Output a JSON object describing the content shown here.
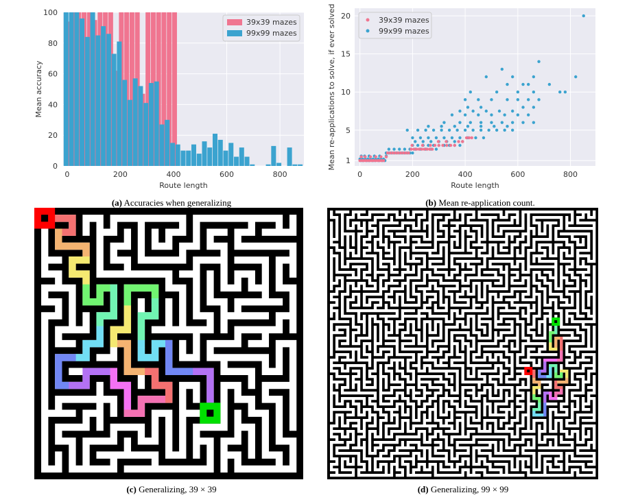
{
  "captions": {
    "a_tag": "(a)",
    "a_text": "Accuracies when generalizing",
    "b_tag": "(b)",
    "b_text": "Mean re-application count.",
    "c_tag": "(c)",
    "c_text": "Generalizing, 39 × 39",
    "d_tag": "(d)",
    "d_text": "Generalizing, 99 × 99"
  },
  "colors": {
    "series_39": "#f07590",
    "series_99": "#3ba3cf",
    "plot_bg": "#eaeaf2",
    "maze_wall": "#000000",
    "maze_path": "#ffffff",
    "start_marker": "#ff0000",
    "goal_marker": "#00e000"
  },
  "chart_data": [
    {
      "type": "bar",
      "xlabel": "Route length",
      "ylabel": "Mean accuracy",
      "xlim": [
        -15,
        890
      ],
      "ylim": [
        0,
        100
      ],
      "xticks": [
        0,
        200,
        400,
        600,
        800
      ],
      "yticks": [
        0,
        20,
        40,
        60,
        80,
        100
      ],
      "legend_position": "top-right",
      "grid": true,
      "series": [
        {
          "name": "39x39 mazes",
          "x": [
            0,
            20,
            40,
            60,
            80,
            100,
            120,
            140,
            160,
            180,
            200,
            220,
            240,
            260,
            280,
            300,
            320,
            340,
            360,
            380,
            400
          ],
          "values": [
            94,
            100,
            100,
            100,
            100,
            95,
            100,
            100,
            100,
            62,
            100,
            100,
            100,
            100,
            47,
            100,
            100,
            100,
            100,
            100,
            100
          ]
        },
        {
          "name": "99x99 mazes",
          "x": [
            0,
            20,
            40,
            60,
            80,
            100,
            120,
            140,
            160,
            180,
            200,
            220,
            240,
            260,
            280,
            300,
            320,
            340,
            360,
            380,
            400,
            420,
            440,
            460,
            480,
            500,
            520,
            540,
            560,
            580,
            600,
            620,
            640,
            660,
            680,
            700,
            720,
            740,
            760,
            780,
            800,
            820,
            840,
            860,
            880
          ],
          "values": [
            100,
            100,
            100,
            96,
            84,
            100,
            85,
            91,
            86,
            73,
            81,
            56,
            43,
            57,
            52,
            41,
            54,
            55,
            27,
            30,
            15,
            14,
            10,
            10,
            14,
            8,
            16,
            12,
            21,
            17,
            10,
            15,
            6,
            12,
            6,
            1,
            0,
            0,
            1,
            13,
            2,
            0,
            12,
            1,
            1
          ]
        }
      ]
    },
    {
      "type": "scatter",
      "xlabel": "Route length",
      "ylabel": "Mean re-applications to solve, if ever solved",
      "xlim": [
        -20,
        895
      ],
      "ylim": [
        0.3,
        21
      ],
      "xticks": [
        0,
        200,
        400,
        600,
        800
      ],
      "yticks": [
        1,
        5,
        10,
        15,
        20
      ],
      "legend_position": "top-left",
      "grid": true,
      "series": [
        {
          "name": "39x39 mazes",
          "points": [
            [
              0,
              1
            ],
            [
              8,
              1
            ],
            [
              15,
              1
            ],
            [
              22,
              1
            ],
            [
              30,
              1
            ],
            [
              38,
              1
            ],
            [
              45,
              1
            ],
            [
              52,
              1
            ],
            [
              60,
              1
            ],
            [
              68,
              1
            ],
            [
              75,
              1
            ],
            [
              82,
              1
            ],
            [
              90,
              1
            ],
            [
              5,
              1.5
            ],
            [
              20,
              1.5
            ],
            [
              40,
              1.5
            ],
            [
              60,
              1.5
            ],
            [
              80,
              1.5
            ],
            [
              100,
              1.5
            ],
            [
              105,
              2
            ],
            [
              115,
              2
            ],
            [
              125,
              2
            ],
            [
              135,
              2
            ],
            [
              145,
              2
            ],
            [
              155,
              2
            ],
            [
              165,
              2
            ],
            [
              175,
              2
            ],
            [
              185,
              2
            ],
            [
              195,
              2.5
            ],
            [
              205,
              2.5
            ],
            [
              215,
              2.5
            ],
            [
              225,
              2.5
            ],
            [
              235,
              2.5
            ],
            [
              245,
              2.5
            ],
            [
              255,
              2.5
            ],
            [
              265,
              2.5
            ],
            [
              275,
              2.5
            ],
            [
              285,
              3
            ],
            [
              300,
              3
            ],
            [
              315,
              3
            ],
            [
              330,
              3
            ],
            [
              345,
              3
            ],
            [
              360,
              3
            ],
            [
              375,
              3.5
            ],
            [
              390,
              3.5
            ],
            [
              405,
              4
            ],
            [
              415,
              4
            ],
            [
              425,
              4
            ],
            [
              198,
              3
            ],
            [
              238,
              3
            ],
            [
              268,
              3
            ],
            [
              298,
              3.5
            ],
            [
              328,
              3.5
            ]
          ]
        },
        {
          "name": "99x99 mazes",
          "points": [
            [
              0,
              1.2
            ],
            [
              10,
              1.2
            ],
            [
              20,
              1.2
            ],
            [
              30,
              1.2
            ],
            [
              40,
              1.2
            ],
            [
              50,
              1.2
            ],
            [
              60,
              1.2
            ],
            [
              70,
              1.2
            ],
            [
              80,
              1.2
            ],
            [
              90,
              1.2
            ],
            [
              2,
              1
            ],
            [
              12,
              1
            ],
            [
              25,
              1
            ],
            [
              35,
              1
            ],
            [
              48,
              1
            ],
            [
              58,
              1
            ],
            [
              72,
              1
            ],
            [
              85,
              1
            ],
            [
              95,
              1
            ],
            [
              5,
              1.6
            ],
            [
              18,
              1.6
            ],
            [
              35,
              1.6
            ],
            [
              55,
              1.6
            ],
            [
              75,
              1.6
            ],
            [
              100,
              1.6
            ],
            [
              100,
              2
            ],
            [
              110,
              2
            ],
            [
              120,
              2
            ],
            [
              130,
              2
            ],
            [
              140,
              2
            ],
            [
              150,
              2
            ],
            [
              160,
              2
            ],
            [
              170,
              2
            ],
            [
              180,
              2
            ],
            [
              190,
              2
            ],
            [
              200,
              2
            ],
            [
              110,
              2.5
            ],
            [
              130,
              2.5
            ],
            [
              150,
              2.5
            ],
            [
              170,
              2.5
            ],
            [
              190,
              2.5
            ],
            [
              210,
              2.5
            ],
            [
              230,
              2.5
            ],
            [
              250,
              2.5
            ],
            [
              270,
              2.5
            ],
            [
              290,
              2.5
            ],
            [
              200,
              3
            ],
            [
              220,
              3
            ],
            [
              240,
              3
            ],
            [
              260,
              3
            ],
            [
              280,
              3
            ],
            [
              300,
              3
            ],
            [
              320,
              3
            ],
            [
              340,
              3
            ],
            [
              360,
              3
            ],
            [
              380,
              3
            ],
            [
              210,
              3.5
            ],
            [
              240,
              3.5
            ],
            [
              270,
              3.5
            ],
            [
              300,
              3.5
            ],
            [
              330,
              3.5
            ],
            [
              360,
              3.5
            ],
            [
              390,
              3.5
            ],
            [
              200,
              4
            ],
            [
              230,
              4
            ],
            [
              260,
              4
            ],
            [
              290,
              4
            ],
            [
              320,
              4
            ],
            [
              350,
              4
            ],
            [
              380,
              4
            ],
            [
              410,
              4
            ],
            [
              440,
              4
            ],
            [
              470,
              4
            ],
            [
              180,
              5
            ],
            [
              220,
              5
            ],
            [
              250,
              5
            ],
            [
              280,
              5
            ],
            [
              310,
              5
            ],
            [
              340,
              5
            ],
            [
              370,
              5
            ],
            [
              400,
              5
            ],
            [
              430,
              5
            ],
            [
              460,
              5
            ],
            [
              490,
              5
            ],
            [
              520,
              5
            ],
            [
              550,
              5
            ],
            [
              580,
              5
            ],
            [
              260,
              5.5
            ],
            [
              310,
              5.5
            ],
            [
              360,
              5.5
            ],
            [
              410,
              5.5
            ],
            [
              460,
              5.5
            ],
            [
              510,
              5.5
            ],
            [
              560,
              5.5
            ],
            [
              320,
              6
            ],
            [
              380,
              6
            ],
            [
              420,
              6
            ],
            [
              460,
              6
            ],
            [
              500,
              6
            ],
            [
              540,
              6
            ],
            [
              580,
              6
            ],
            [
              620,
              6
            ],
            [
              660,
              6
            ],
            [
              350,
              7
            ],
            [
              400,
              7
            ],
            [
              450,
              7
            ],
            [
              500,
              7
            ],
            [
              550,
              7
            ],
            [
              600,
              7
            ],
            [
              640,
              7
            ],
            [
              380,
              7.5
            ],
            [
              430,
              7.5
            ],
            [
              480,
              7.5
            ],
            [
              530,
              7.5
            ],
            [
              580,
              7.5
            ],
            [
              620,
              8
            ],
            [
              660,
              8
            ],
            [
              410,
              8
            ],
            [
              460,
              8
            ],
            [
              400,
              9
            ],
            [
              450,
              9
            ],
            [
              500,
              9
            ],
            [
              560,
              9
            ],
            [
              600,
              9
            ],
            [
              640,
              9
            ],
            [
              680,
              9
            ],
            [
              420,
              10
            ],
            [
              520,
              10
            ],
            [
              600,
              10
            ],
            [
              660,
              10
            ],
            [
              760,
              10
            ],
            [
              780,
              10
            ],
            [
              560,
              11
            ],
            [
              620,
              11
            ],
            [
              640,
              11
            ],
            [
              720,
              11
            ],
            [
              820,
              12
            ],
            [
              480,
              12
            ],
            [
              580,
              12
            ],
            [
              660,
              12
            ],
            [
              540,
              13
            ],
            [
              680,
              14
            ],
            [
              850,
              20
            ]
          ]
        }
      ]
    }
  ]
}
